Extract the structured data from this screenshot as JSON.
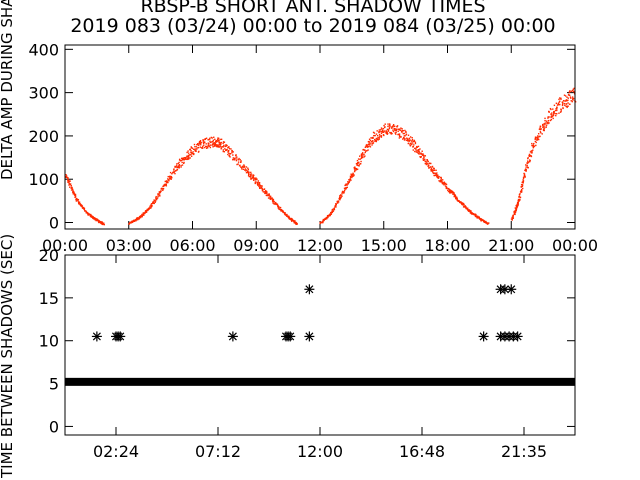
{
  "chart_data": [
    {
      "type": "scatter",
      "title": "RBSP-B SHORT ANT. SHADOW TIMES",
      "subtitle": "2019 083 (03/24) 00:00 to 2019 084 (03/25) 00:00",
      "ylabel": "DELTA AMP DURING SHADOW",
      "xlim": [
        0,
        24
      ],
      "ylim": [
        -15,
        410
      ],
      "x_tick_labels": [
        "00:00",
        "03:00",
        "06:00",
        "09:00",
        "12:00",
        "15:00",
        "18:00",
        "21:00",
        "00:00"
      ],
      "y_ticks": [
        0,
        100,
        200,
        300,
        400
      ],
      "color": "#ff2a00",
      "envelope": [
        {
          "x": 0.0,
          "y": 120
        },
        {
          "x": 0.5,
          "y": 60
        },
        {
          "x": 1.0,
          "y": 25
        },
        {
          "x": 1.5,
          "y": 8
        },
        {
          "x": 1.8,
          "y": 0
        },
        {
          "x": 3.0,
          "y": 2
        },
        {
          "x": 3.5,
          "y": 15
        },
        {
          "x": 4.0,
          "y": 40
        },
        {
          "x": 4.5,
          "y": 80
        },
        {
          "x": 5.0,
          "y": 120
        },
        {
          "x": 5.5,
          "y": 155
        },
        {
          "x": 6.0,
          "y": 180
        },
        {
          "x": 6.5,
          "y": 195
        },
        {
          "x": 7.0,
          "y": 200
        },
        {
          "x": 7.3,
          "y": 195
        },
        {
          "x": 7.8,
          "y": 170
        },
        {
          "x": 8.5,
          "y": 130
        },
        {
          "x": 9.0,
          "y": 100
        },
        {
          "x": 9.5,
          "y": 70
        },
        {
          "x": 10.0,
          "y": 40
        },
        {
          "x": 10.5,
          "y": 15
        },
        {
          "x": 10.9,
          "y": 0
        },
        {
          "x": 12.0,
          "y": 2
        },
        {
          "x": 12.5,
          "y": 25
        },
        {
          "x": 13.0,
          "y": 70
        },
        {
          "x": 13.5,
          "y": 120
        },
        {
          "x": 14.0,
          "y": 170
        },
        {
          "x": 14.5,
          "y": 210
        },
        {
          "x": 15.0,
          "y": 230
        },
        {
          "x": 15.5,
          "y": 230
        },
        {
          "x": 16.0,
          "y": 215
        },
        {
          "x": 16.5,
          "y": 185
        },
        {
          "x": 17.0,
          "y": 150
        },
        {
          "x": 17.5,
          "y": 115
        },
        {
          "x": 18.0,
          "y": 85
        },
        {
          "x": 18.5,
          "y": 55
        },
        {
          "x": 19.0,
          "y": 30
        },
        {
          "x": 19.5,
          "y": 12
        },
        {
          "x": 19.9,
          "y": 0
        },
        {
          "x": 21.0,
          "y": 10
        },
        {
          "x": 21.3,
          "y": 50
        },
        {
          "x": 21.6,
          "y": 120
        },
        {
          "x": 22.0,
          "y": 190
        },
        {
          "x": 22.5,
          "y": 240
        },
        {
          "x": 23.0,
          "y": 280
        },
        {
          "x": 23.5,
          "y": 300
        },
        {
          "x": 24.0,
          "y": 320
        }
      ]
    },
    {
      "type": "scatter",
      "ylabel": "TIME BETWEEN SHADOWS (SEC)",
      "xlim": [
        0,
        24
      ],
      "ylim": [
        -1,
        20
      ],
      "x_tick_labels": [
        "02:24",
        "07:12",
        "12:00",
        "16:48",
        "21:35"
      ],
      "y_ticks": [
        0,
        5,
        10,
        15,
        20
      ],
      "marker": "*",
      "color": "#000000",
      "baseline": {
        "y": 5.2,
        "x_start": 0.0,
        "x_end": 24.0
      },
      "points": [
        {
          "x": 1.5,
          "y": 10.5
        },
        {
          "x": 2.4,
          "y": 10.5
        },
        {
          "x": 2.5,
          "y": 10.5
        },
        {
          "x": 2.6,
          "y": 10.5
        },
        {
          "x": 7.9,
          "y": 10.5
        },
        {
          "x": 10.4,
          "y": 10.5
        },
        {
          "x": 10.5,
          "y": 10.5
        },
        {
          "x": 10.6,
          "y": 10.5
        },
        {
          "x": 11.5,
          "y": 16.0
        },
        {
          "x": 11.5,
          "y": 10.5
        },
        {
          "x": 19.7,
          "y": 10.5
        },
        {
          "x": 20.5,
          "y": 16.0
        },
        {
          "x": 20.7,
          "y": 16.0
        },
        {
          "x": 21.0,
          "y": 16.0
        },
        {
          "x": 20.5,
          "y": 10.5
        },
        {
          "x": 20.7,
          "y": 10.5
        },
        {
          "x": 20.9,
          "y": 10.5
        },
        {
          "x": 21.1,
          "y": 10.5
        },
        {
          "x": 21.3,
          "y": 10.5
        }
      ]
    }
  ]
}
